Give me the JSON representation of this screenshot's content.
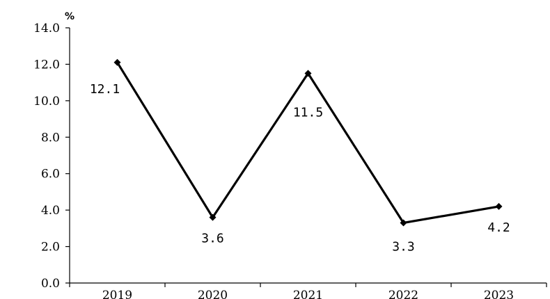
{
  "chart_data": {
    "type": "line",
    "ylabel": "%",
    "ylim": [
      0,
      14
    ],
    "yticks": [
      "0.0",
      "2.0",
      "4.0",
      "6.0",
      "8.0",
      "10.0",
      "12.0",
      "14.0"
    ],
    "categories": [
      "2019",
      "2020",
      "2021",
      "2022",
      "2023"
    ],
    "series": [
      {
        "values": [
          12.1,
          3.6,
          11.5,
          3.3,
          4.2
        ]
      }
    ],
    "data_labels": [
      "12.1",
      "3.6",
      "11.5",
      "3.3",
      "4.2"
    ],
    "grid": false,
    "line_color": "#000000"
  }
}
